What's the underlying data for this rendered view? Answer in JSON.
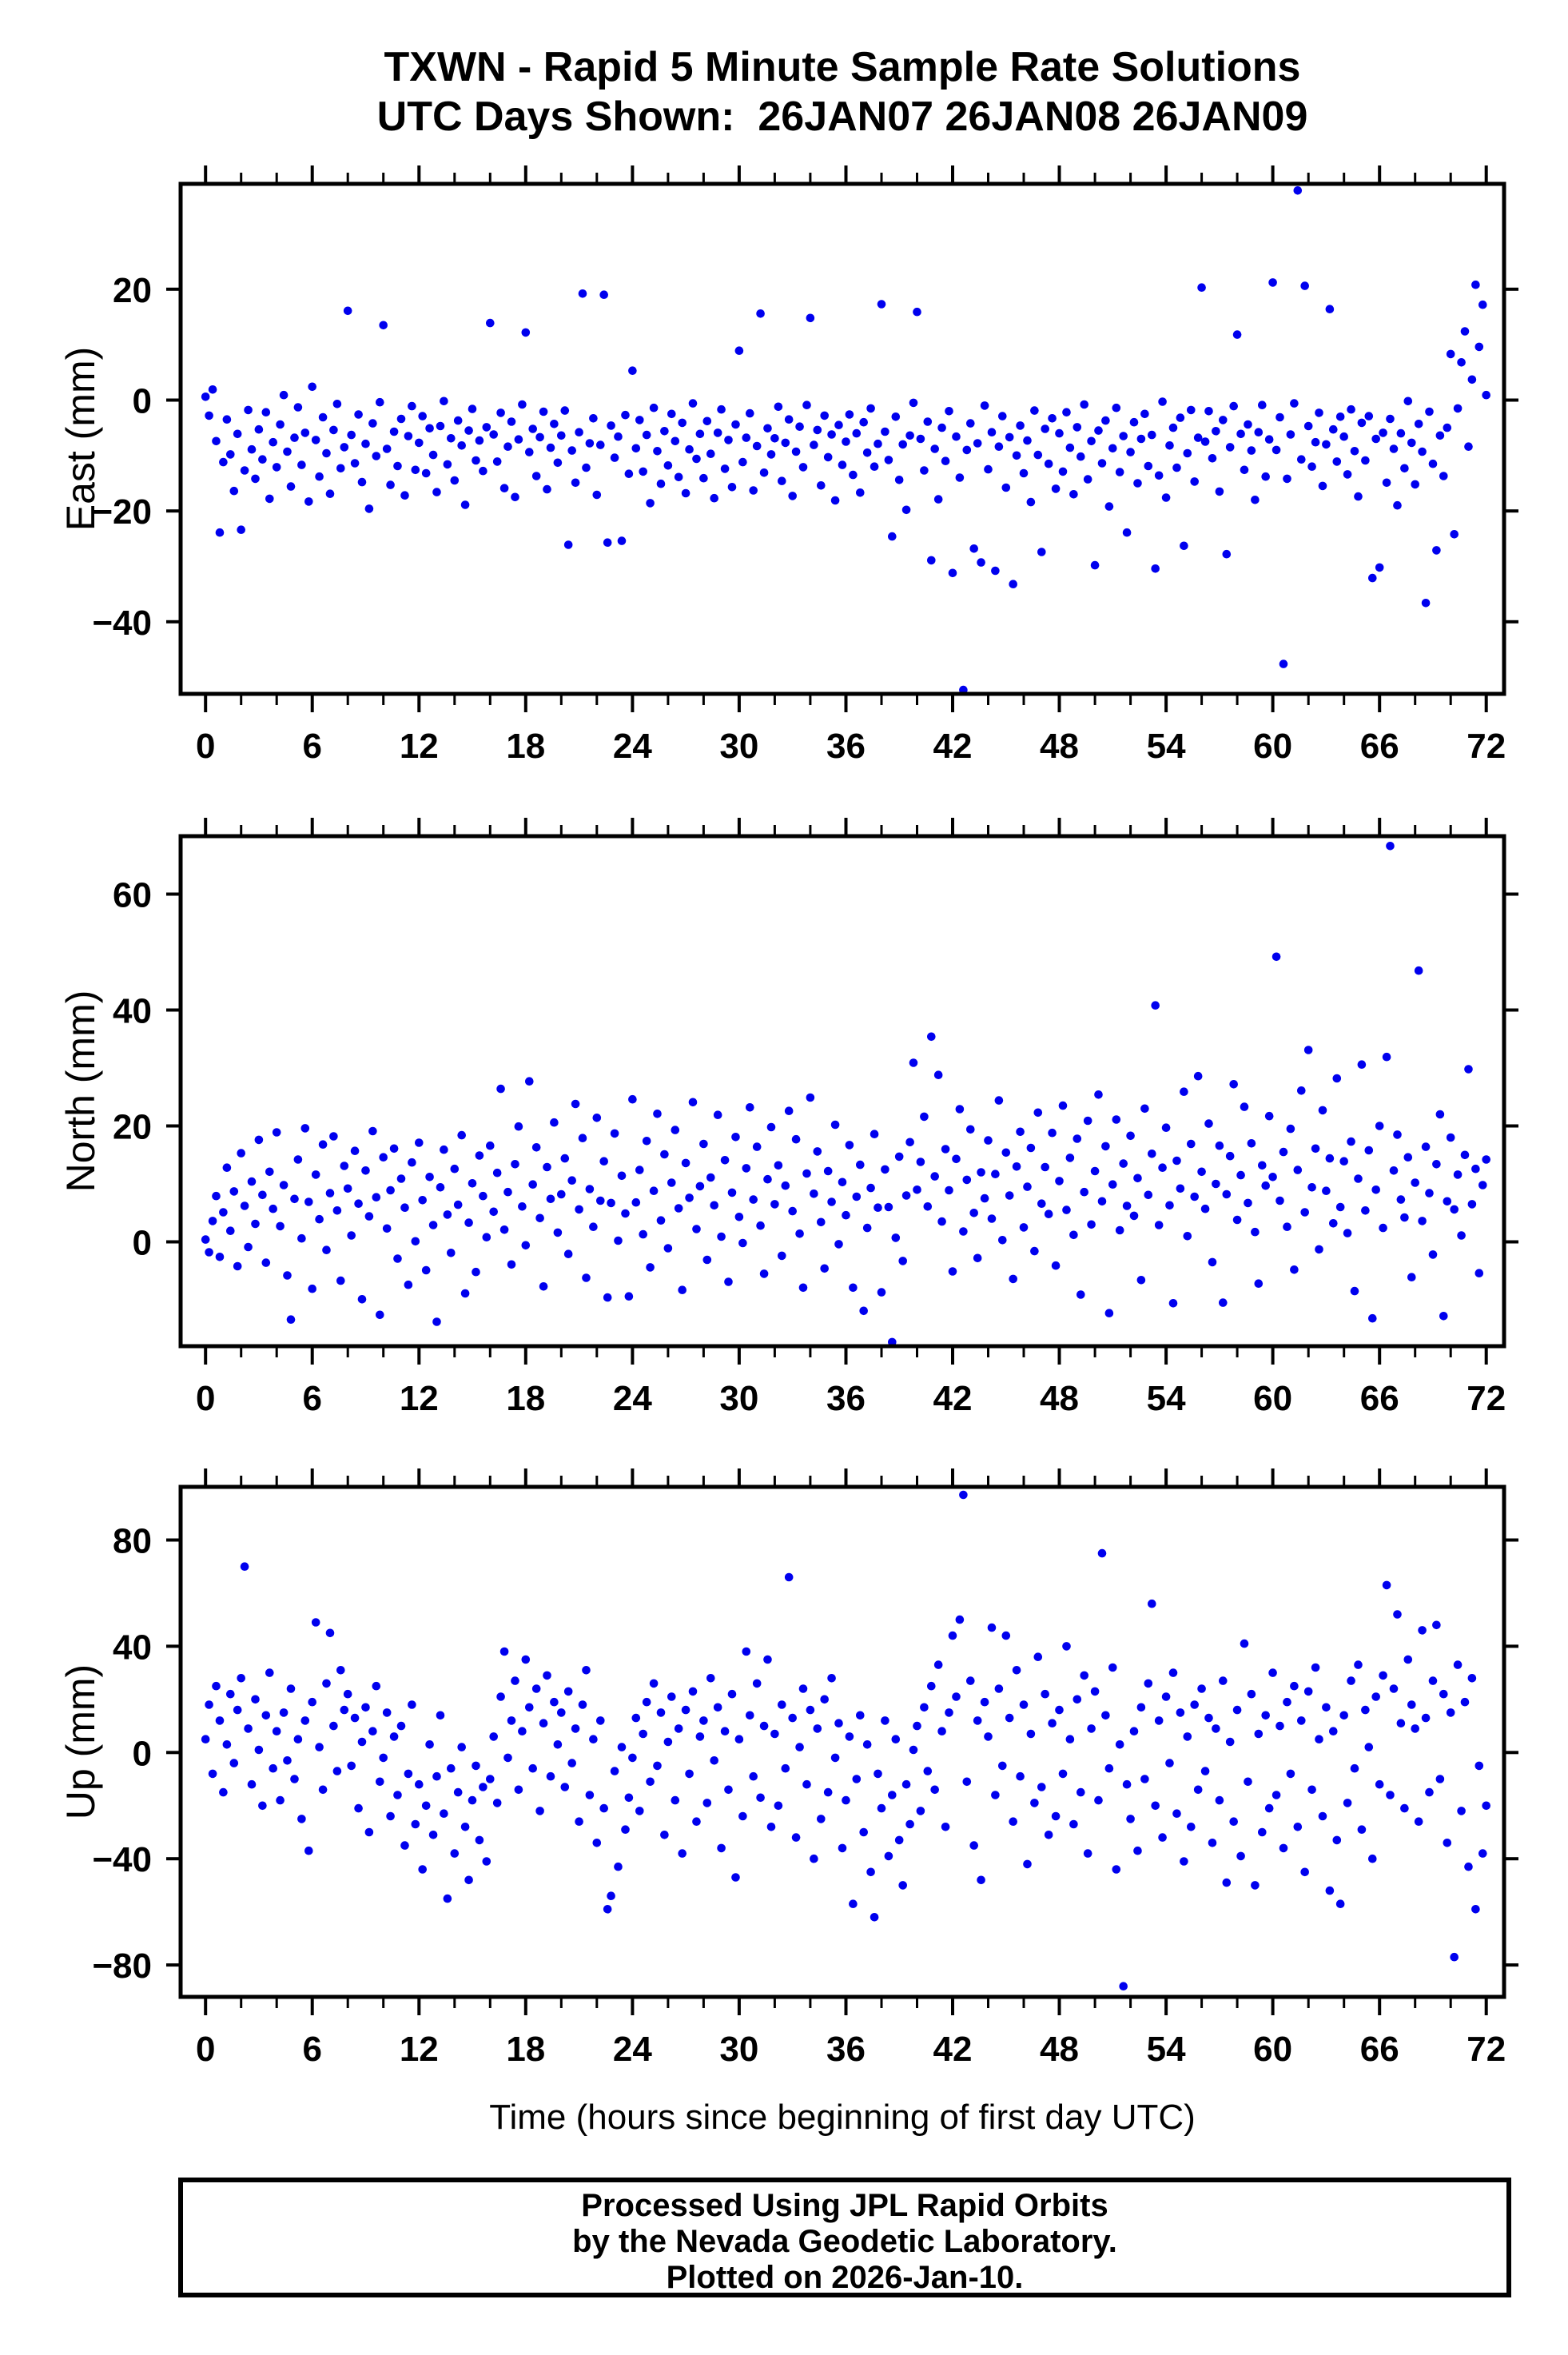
{
  "header": {
    "station": "TXWN",
    "title": "TXWN - Rapid 5 Minute Sample Rate Solutions",
    "subtitle": "UTC Days Shown:  26JAN07 26JAN08 26JAN09"
  },
  "footer": {
    "lines": [
      "Processed Using JPL Rapid Orbits",
      "by the Nevada Geodetic Laboratory.",
      "Plotted on 2026-Jan-10."
    ]
  },
  "chart_data": {
    "type": "scatter",
    "title": "TXWN - Rapid 5 Minute Sample Rate Solutions",
    "subtitle": "UTC Days Shown:  26JAN07 26JAN08 26JAN09",
    "xlabel": "Time (hours since beginning of first day UTC)",
    "point_color": "#0000EE",
    "background": "#ffffff",
    "frame_color": "#000000",
    "legend": "none",
    "grid": false,
    "x_axis": {
      "range": [
        -1.4,
        73.0
      ],
      "major_ticks": [
        0,
        6,
        12,
        18,
        24,
        30,
        36,
        42,
        48,
        54,
        60,
        66,
        72
      ],
      "minor_step": 2,
      "minor_range": [
        0,
        72
      ]
    },
    "t_spec": {
      "start": 0,
      "step": 0.2,
      "count": 361,
      "units": "hours"
    },
    "panels": [
      {
        "id": "east",
        "ylabel": "East (mm)",
        "ylim": [
          -53,
          39
        ],
        "yticks": [
          -40,
          -20,
          0,
          20
        ],
        "values": [
          0.6,
          -2.8,
          1.9,
          -7.4,
          -23.9,
          -11.2,
          -3.5,
          -9.8,
          -16.4,
          -6.1,
          -23.4,
          -12.7,
          -1.8,
          -8.9,
          -14.2,
          -5.3,
          -10.7,
          -2.2,
          -17.8,
          -7.6,
          -12.1,
          -4.4,
          0.9,
          -9.3,
          -15.6,
          -6.8,
          -1.3,
          -11.7,
          -5.9,
          -18.3,
          2.4,
          -7.2,
          -13.8,
          -3.1,
          -9.6,
          -16.9,
          -5.4,
          -0.7,
          -12.3,
          -8.5,
          16.1,
          -6.3,
          -11.4,
          -2.6,
          -14.8,
          -7.9,
          -19.6,
          -4.2,
          -10.1,
          -0.4,
          13.5,
          -8.8,
          -15.3,
          -5.7,
          -11.9,
          -3.4,
          -17.2,
          -6.5,
          -1.1,
          -12.6,
          -7.7,
          -2.9,
          -13.2,
          -5.1,
          -9.9,
          -16.6,
          -4.7,
          -0.2,
          -11.6,
          -6.9,
          -14.5,
          -3.7,
          -8.2,
          -18.9,
          -5.5,
          -1.6,
          -10.9,
          -7.3,
          -12.8,
          -4.9,
          13.9,
          -6.2,
          -11.1,
          -2.3,
          -15.9,
          -8.4,
          -3.9,
          -17.5,
          -7.1,
          -0.8,
          12.2,
          -9.4,
          -5.2,
          -13.7,
          -6.7,
          -2.1,
          -16.1,
          -8.6,
          -4.3,
          -11.3,
          -6.4,
          -1.9,
          -26.1,
          -9.1,
          -14.9,
          -5.8,
          19.2,
          -12.2,
          -7.8,
          -3.3,
          -17.1,
          -8.1,
          19.0,
          -25.7,
          -4.6,
          -10.4,
          -6.6,
          -25.4,
          -2.7,
          -13.3,
          5.3,
          -8.7,
          -3.6,
          -12.9,
          -6.3,
          -18.6,
          -1.4,
          -9.2,
          -15.1,
          -5.6,
          -11.8,
          -2.5,
          -7.4,
          -13.9,
          -4.1,
          -16.8,
          -8.9,
          -0.6,
          -10.6,
          -6.1,
          -14.1,
          -3.8,
          -9.7,
          -17.7,
          -5.9,
          -1.7,
          -12.4,
          -7.2,
          -15.7,
          -4.4,
          8.9,
          -11.2,
          -6.8,
          -2.4,
          -16.3,
          -8.3,
          15.6,
          -13.1,
          -5.1,
          -9.8,
          -6.9,
          -1.2,
          -14.6,
          -7.7,
          -3.5,
          -17.3,
          -9.3,
          -4.8,
          -12.1,
          -0.9,
          14.8,
          -8.1,
          -5.4,
          -15.4,
          -2.8,
          -10.3,
          -6.2,
          -18.1,
          -4.5,
          -11.7,
          -7.5,
          -2.6,
          -13.5,
          -6.0,
          -16.7,
          -4.0,
          -9.5,
          -1.5,
          -12.0,
          -7.9,
          17.3,
          -5.7,
          -10.8,
          -24.6,
          -3.0,
          -14.4,
          -8.0,
          -19.8,
          -6.4,
          -0.5,
          15.9,
          -7.0,
          -12.7,
          -3.9,
          -28.9,
          -8.8,
          -17.9,
          -5.0,
          -11.0,
          -2.0,
          -31.2,
          -6.6,
          -14.0,
          -52.3,
          -9.0,
          -4.2,
          -26.8,
          -7.8,
          -29.3,
          -1.0,
          -12.5,
          -5.8,
          -30.8,
          -8.4,
          -2.9,
          -15.8,
          -6.7,
          -33.2,
          -10.0,
          -4.6,
          -13.2,
          -7.3,
          -18.4,
          -1.9,
          -9.9,
          -27.4,
          -5.2,
          -11.5,
          -3.3,
          -16.0,
          -6.0,
          -12.9,
          -2.2,
          -8.6,
          -17.0,
          -4.9,
          -10.2,
          -0.8,
          -14.3,
          -7.4,
          -29.8,
          -5.5,
          -11.4,
          -3.7,
          -19.2,
          -8.7,
          -1.4,
          -13.0,
          -6.5,
          -23.9,
          -9.4,
          -4.0,
          -15.0,
          -7.0,
          -2.5,
          -11.9,
          -6.3,
          -30.4,
          -13.6,
          -0.3,
          -17.6,
          -8.2,
          -5.0,
          -12.2,
          -3.2,
          -26.3,
          -9.6,
          -1.8,
          -14.7,
          -6.8,
          20.3,
          -7.5,
          -2.0,
          -10.5,
          -5.6,
          -16.5,
          -3.6,
          -27.8,
          -8.5,
          -1.1,
          11.8,
          -6.1,
          -12.6,
          -4.4,
          -9.1,
          -18.0,
          -5.8,
          -0.9,
          -13.8,
          -7.1,
          21.2,
          -9.0,
          -3.1,
          -47.6,
          -14.2,
          -6.2,
          -0.6,
          37.8,
          -10.7,
          20.6,
          -4.7,
          -12.0,
          -7.6,
          -2.3,
          -15.5,
          -8.0,
          16.4,
          -5.3,
          -11.1,
          -3.0,
          -6.6,
          -13.4,
          -1.7,
          -9.2,
          -17.4,
          -4.1,
          -10.9,
          -2.9,
          -32.1,
          -7.0,
          -30.2,
          -5.9,
          -14.9,
          -3.4,
          -8.8,
          -19.0,
          -6.0,
          -12.3,
          -0.2,
          -7.7,
          -15.2,
          -4.3,
          -9.3,
          -36.6,
          -2.1,
          -11.5,
          -27.1,
          -6.4,
          -13.7,
          -5.0,
          8.3,
          -24.2,
          -1.5,
          6.8,
          12.4,
          -8.4,
          3.7,
          20.8,
          9.6,
          17.2,
          0.9
        ]
      },
      {
        "id": "north",
        "ylabel": "North (mm)",
        "ylim": [
          -18,
          70
        ],
        "yticks": [
          0,
          20,
          40,
          60
        ],
        "values": [
          0.4,
          -1.8,
          3.6,
          7.9,
          -2.6,
          5.1,
          12.8,
          1.9,
          8.7,
          -4.2,
          15.3,
          6.2,
          -0.9,
          10.4,
          3.1,
          17.6,
          8.1,
          -3.6,
          12.1,
          5.7,
          18.9,
          2.7,
          9.8,
          -5.8,
          -13.4,
          7.4,
          14.2,
          0.6,
          19.6,
          6.9,
          -8.1,
          11.6,
          3.9,
          16.8,
          -1.4,
          8.4,
          18.2,
          5.4,
          -6.7,
          13.1,
          9.2,
          1.1,
          15.7,
          6.6,
          -9.9,
          12.3,
          4.4,
          19.1,
          7.7,
          -12.6,
          14.6,
          2.3,
          8.9,
          16.1,
          -2.9,
          10.9,
          5.9,
          -7.4,
          13.7,
          0.1,
          17.1,
          7.2,
          -4.9,
          11.2,
          2.9,
          -13.8,
          9.4,
          15.9,
          4.7,
          -1.9,
          12.6,
          6.4,
          18.4,
          -8.9,
          3.3,
          10.1,
          -5.2,
          14.9,
          7.9,
          0.8,
          16.6,
          5.2,
          11.9,
          26.4,
          2.1,
          8.6,
          -3.9,
          13.4,
          19.9,
          6.1,
          -0.6,
          27.7,
          9.9,
          16.3,
          4.1,
          -7.7,
          12.9,
          7.4,
          20.6,
          1.6,
          8.2,
          14.4,
          -2.1,
          10.6,
          23.8,
          5.6,
          17.9,
          -6.2,
          9.1,
          2.6,
          21.4,
          7.1,
          13.9,
          -9.6,
          6.7,
          18.7,
          0.2,
          11.4,
          4.9,
          -9.4,
          24.6,
          6.8,
          12.4,
          1.3,
          17.4,
          -4.4,
          8.8,
          22.1,
          3.7,
          15.1,
          -1.1,
          10.2,
          19.3,
          5.8,
          -8.3,
          13.6,
          7.6,
          24.1,
          2.2,
          9.6,
          16.9,
          -3.1,
          11.1,
          6.3,
          21.9,
          0.9,
          14.1,
          -6.9,
          8.5,
          18.1,
          4.3,
          -0.2,
          12.7,
          23.2,
          7.3,
          16.4,
          2.8,
          -5.5,
          10.8,
          19.8,
          6.5,
          13.2,
          -2.4,
          9.7,
          22.6,
          5.3,
          17.7,
          1.4,
          -7.9,
          11.8,
          24.9,
          8.3,
          15.6,
          3.4,
          -4.6,
          12.2,
          6.9,
          20.2,
          -0.4,
          10.3,
          4.6,
          16.7,
          -7.9,
          7.8,
          13.3,
          -11.9,
          2.4,
          9.3,
          18.6,
          5.9,
          -8.7,
          12.5,
          6.0,
          -17.3,
          0.7,
          14.7,
          -3.3,
          8.0,
          17.2,
          30.9,
          9.0,
          13.8,
          21.6,
          6.1,
          35.4,
          11.3,
          28.8,
          3.5,
          16.0,
          8.9,
          -5.1,
          14.3,
          22.9,
          1.8,
          10.7,
          19.4,
          5.0,
          -2.8,
          12.0,
          7.5,
          17.5,
          4.0,
          11.7,
          24.4,
          0.3,
          15.4,
          8.0,
          -6.4,
          13.0,
          19.0,
          2.5,
          9.5,
          16.2,
          -1.6,
          22.3,
          6.6,
          12.9,
          4.8,
          18.8,
          -4.1,
          10.5,
          23.5,
          5.5,
          14.5,
          1.2,
          17.8,
          -9.1,
          8.6,
          20.9,
          3.0,
          12.2,
          25.4,
          7.0,
          16.5,
          -12.3,
          9.9,
          21.1,
          2.0,
          13.5,
          6.2,
          18.3,
          4.5,
          11.0,
          -6.6,
          23.0,
          8.1,
          15.2,
          40.8,
          2.9,
          12.8,
          19.7,
          6.3,
          -10.6,
          14.0,
          9.2,
          25.9,
          1.0,
          16.9,
          7.8,
          28.6,
          12.1,
          5.7,
          20.4,
          -3.5,
          10.0,
          16.6,
          -10.5,
          8.2,
          14.8,
          27.2,
          3.8,
          11.5,
          23.3,
          6.7,
          17.0,
          1.7,
          -7.2,
          13.2,
          9.7,
          21.7,
          11.2,
          49.2,
          7.1,
          15.5,
          2.6,
          19.5,
          -4.8,
          12.4,
          26.1,
          5.1,
          33.1,
          9.4,
          16.1,
          -1.3,
          22.7,
          8.8,
          14.4,
          3.2,
          28.2,
          6.0,
          13.9,
          1.5,
          17.3,
          -8.5,
          10.9,
          30.6,
          5.4,
          15.8,
          -13.2,
          9.0,
          20.0,
          2.4,
          31.9,
          68.3,
          12.3,
          18.5,
          7.3,
          4.2,
          14.6,
          -6.1,
          10.2,
          46.8,
          3.6,
          16.4,
          8.4,
          -2.2,
          13.4,
          22.0,
          -12.8,
          7.0,
          18.0,
          5.6,
          11.6,
          1.1,
          15.0,
          29.8,
          6.5,
          12.6,
          -5.4,
          9.8,
          14.2
        ]
      },
      {
        "id": "up",
        "ylabel": "Up (mm)",
        "ylim": [
          -92,
          100
        ],
        "yticks": [
          -80,
          -40,
          0,
          40,
          80
        ],
        "values": [
          5,
          18,
          -8,
          25,
          12,
          -15,
          3,
          22,
          -4,
          16,
          28,
          70,
          9,
          -12,
          20,
          1,
          -20,
          14,
          30,
          -6,
          8,
          -18,
          15,
          -3,
          24,
          -10,
          5,
          -25,
          12,
          -37,
          19,
          49,
          2,
          -14,
          26,
          45,
          10,
          -7,
          31,
          16,
          22,
          -5,
          13,
          -21,
          4,
          17,
          -30,
          8,
          25,
          -11,
          -2,
          15,
          -24,
          6,
          -16,
          10,
          -35,
          -8,
          18,
          -27,
          -12,
          -44,
          -20,
          3,
          -31,
          -9,
          14,
          -23,
          -55,
          -6,
          -38,
          -15,
          2,
          -28,
          -48,
          -18,
          -5,
          -33,
          -13,
          -41,
          -10,
          6,
          -19,
          21,
          38,
          -2,
          12,
          27,
          -14,
          8,
          35,
          17,
          -6,
          24,
          -22,
          11,
          29,
          -9,
          19,
          3,
          15,
          -13,
          23,
          -4,
          9,
          -26,
          18,
          31,
          -16,
          5,
          -34,
          12,
          -21,
          -59,
          -54,
          -7,
          -43,
          2,
          -29,
          -17,
          -2,
          13,
          -22,
          7,
          19,
          -11,
          26,
          -5,
          15,
          -31,
          4,
          21,
          -18,
          9,
          -38,
          16,
          -8,
          23,
          -26,
          6,
          12,
          -19,
          28,
          -3,
          17,
          -36,
          8,
          -14,
          22,
          -47,
          5,
          -24,
          38,
          14,
          -9,
          26,
          -17,
          10,
          35,
          -28,
          7,
          -20,
          18,
          -6,
          66,
          13,
          -32,
          2,
          24,
          -12,
          16,
          -40,
          9,
          -25,
          20,
          -15,
          28,
          -2,
          11,
          -36,
          -18,
          6,
          -57,
          -10,
          14,
          -30,
          3,
          -45,
          -62,
          -8,
          -21,
          12,
          -39,
          -16,
          5,
          -33,
          -50,
          -12,
          -27,
          1,
          10,
          -22,
          17,
          -7,
          25,
          -14,
          33,
          8,
          -28,
          15,
          44,
          21,
          50,
          97,
          -11,
          27,
          -35,
          12,
          -48,
          19,
          6,
          47,
          -16,
          24,
          -5,
          44,
          13,
          -26,
          31,
          -9,
          18,
          -42,
          7,
          -19,
          36,
          -13,
          22,
          -31,
          11,
          -24,
          16,
          -8,
          40,
          5,
          -27,
          20,
          -15,
          29,
          -38,
          9,
          23,
          -18,
          75,
          14,
          -6,
          32,
          -44,
          3,
          -88,
          -12,
          -25,
          8,
          -37,
          17,
          -10,
          26,
          56,
          -20,
          12,
          -32,
          21,
          -4,
          30,
          -23,
          15,
          -41,
          6,
          -28,
          18,
          -14,
          24,
          -7,
          13,
          -34,
          9,
          -18,
          27,
          -49,
          4,
          -26,
          16,
          -39,
          41,
          -11,
          22,
          -50,
          7,
          -30,
          14,
          -21,
          30,
          -16,
          10,
          -36,
          19,
          -8,
          25,
          -28,
          12,
          -45,
          23,
          -14,
          32,
          5,
          -24,
          17,
          -52,
          8,
          -33,
          -57,
          14,
          -19,
          27,
          -6,
          33,
          -29,
          16,
          2,
          -40,
          21,
          -12,
          29,
          63,
          -16,
          24,
          52,
          11,
          -21,
          35,
          18,
          9,
          -26,
          46,
          13,
          -15,
          27,
          48,
          -10,
          22,
          -34,
          15,
          -77,
          33,
          -22,
          19,
          -43,
          28,
          -59,
          -5,
          -38,
          -20
        ]
      }
    ]
  }
}
